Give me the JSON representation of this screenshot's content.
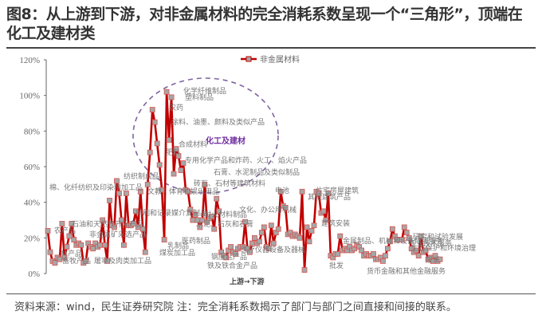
{
  "header": {
    "title": "图8：从上游到下游，对非金属材料的完全消耗系数呈现一个“三角形”，顶端在化工及建材类"
  },
  "footer": {
    "source": "资料来源：wind，民生证券研究院   注：完全消耗系数揭示了部门与部门之间直接和间接的联系。"
  },
  "chart_data": {
    "type": "line",
    "title": "",
    "xlabel": "上游→下游",
    "ylabel": "",
    "ylim": [
      0,
      1.2
    ],
    "yticks": [
      "0%",
      "20%",
      "40%",
      "60%",
      "80%",
      "100%",
      "120%"
    ],
    "legend": [
      {
        "name": "非金属材料",
        "color": "#c00000",
        "marker": "square",
        "marker_color": "#a6a6a6"
      }
    ],
    "legend_position": "top",
    "grid": false,
    "series": [
      {
        "name": "非金属材料",
        "values": [
          0.24,
          0.12,
          0.07,
          0.06,
          0.09,
          0.08,
          0.28,
          0.09,
          0.15,
          0.21,
          0.28,
          0.19,
          0.16,
          0.17,
          0.16,
          0.06,
          0.07,
          0.17,
          0.15,
          0.14,
          0.17,
          0.15,
          0.16,
          0.3,
          0.16,
          0.07,
          0.41,
          0.27,
          0.26,
          0.52,
          0.45,
          0.3,
          0.16,
          0.45,
          0.27,
          0.27,
          0.28,
          0.35,
          0.26,
          0.46,
          0.25,
          0.12,
          0.5,
          0.68,
          0.92,
          0.85,
          0.73,
          0.61,
          0.47,
          0.19,
          1.02,
          0.75,
          0.99,
          0.56,
          0.7,
          0.66,
          0.58,
          0.62,
          0.47,
          0.46,
          0.36,
          0.3,
          0.33,
          0.3,
          0.26,
          0.3,
          0.5,
          0.29,
          0.31,
          0.32,
          0.25,
          0.42,
          0.35,
          0.12,
          0.1,
          0.09,
          0.13,
          0.15,
          0.12,
          0.11,
          0.14,
          0.15,
          0.15,
          0.29,
          0.14,
          0.12,
          0.17,
          0.2,
          0.17,
          0.18,
          0.23,
          0.26,
          0.15,
          0.14,
          0.27,
          0.17,
          0.23,
          0.25,
          0.46,
          0.38,
          0.37,
          0.22,
          0.23,
          0.21,
          0.22,
          0.21,
          0.2,
          0.46,
          0.02,
          0.26,
          0.18,
          0.24,
          0.27,
          0.46,
          0.45,
          0.34,
          0.35,
          0.3,
          0.45,
          0.1,
          0.09,
          0.11,
          0.11,
          0.21,
          0.13,
          0.14,
          0.13,
          0.15,
          0.13,
          0.14,
          0.16,
          0.15,
          0.13,
          0.1,
          0.11,
          0.1,
          0.1,
          0.11,
          0.08,
          0.08,
          0.09,
          0.07,
          0.1,
          0.14,
          0.18,
          0.25,
          0.21,
          0.19,
          0.19,
          0.19,
          0.26,
          0.23,
          0.2,
          0.14,
          0.12,
          0.13,
          0.1,
          0.21,
          0.12,
          0.13,
          0.08,
          0.09,
          0.07,
          0.1,
          0.07,
          0.08
        ]
      }
    ],
    "annotations": [
      {
        "text": "化学纤维制品",
        "value_approx": 1.02
      },
      {
        "text": "塑料制品",
        "value_approx": 0.99
      },
      {
        "text": "农药",
        "value_approx": 0.92
      },
      {
        "text": "涂料、油墨、颜料及类似产品",
        "value_approx": 0.85
      },
      {
        "text": "合成材料",
        "value_approx": 0.75
      },
      {
        "text": "肥料",
        "value_approx": 0.68
      },
      {
        "text": "专用化学产品和炸药、火工、焰火产品",
        "value_approx": 0.62
      },
      {
        "text": "石膏、水泥制品及类似制品",
        "value_approx": 0.56
      },
      {
        "text": "砖瓦、石材等建筑材料",
        "value_approx": 0.5
      },
      {
        "text": "纺织制成品",
        "value_approx": 0.52
      },
      {
        "text": "文教、体育和娱乐用品",
        "value_approx": 0.47
      },
      {
        "text": "棉、化纤纺织及印染精加工品",
        "value_approx": 0.46
      },
      {
        "text": "印刷和记录媒介复制品",
        "value_approx": 0.3
      },
      {
        "text": "耐火材料制品",
        "value_approx": 0.29
      },
      {
        "text": "水泥、石灰和石膏",
        "value_approx": 0.25
      },
      {
        "text": "电池",
        "value_approx": 0.46
      },
      {
        "text": "文化、办公用机械",
        "value_approx": 0.3
      },
      {
        "text": "住宅房屋建筑",
        "value_approx": 0.46
      },
      {
        "text": "其他建筑产品",
        "value_approx": 0.45
      },
      {
        "text": "建筑安装",
        "value_approx": 0.3
      },
      {
        "text": "石油和天然气开采产品",
        "value_approx": 0.28
      },
      {
        "text": "农产品",
        "value_approx": 0.24
      },
      {
        "text": "非金属矿采选产品",
        "value_approx": 0.21
      },
      {
        "text": "林产品",
        "value_approx": 0.09
      },
      {
        "text": "畜牧产品",
        "value_approx": 0.06
      },
      {
        "text": "屠宰及肉类加工品",
        "value_approx": 0.07
      },
      {
        "text": "乳制品",
        "value_approx": 0.16
      },
      {
        "text": "煤炭加工品",
        "value_approx": 0.12
      },
      {
        "text": "医药制品",
        "value_approx": 0.19
      },
      {
        "text": "钢压延产品",
        "value_approx": 0.1
      },
      {
        "text": "铁及铁合金产品",
        "value_approx": 0.09
      },
      {
        "text": "医疗仪器设备及器械",
        "value_approx": 0.12
      },
      {
        "text": "金属制品、机械和设备修理服务",
        "value_approx": 0.21
      },
      {
        "text": "批发",
        "value_approx": 0.1
      },
      {
        "text": "货币金融和其他金融服务",
        "value_approx": 0.07
      },
      {
        "text": "生态保护和环境治理",
        "value_approx": 0.26
      },
      {
        "text": "研究和试验发展",
        "value_approx": 0.21
      },
      {
        "text": "专业技术服务",
        "value_approx": 0.2
      },
      {
        "text": "娱乐",
        "value_approx": 0.08
      }
    ],
    "circle_annotation": "化工及建材"
  },
  "legend_label": "非金属材料",
  "circle_label": "化工及建材",
  "xlabel": "上游→下游"
}
